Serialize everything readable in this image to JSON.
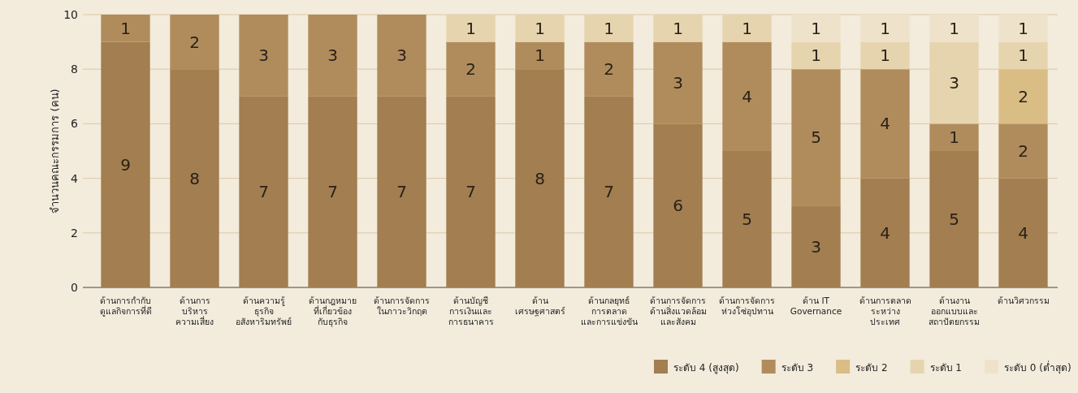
{
  "chart_data": {
    "type": "bar",
    "stacked": true,
    "ylabel": "จำนวนคณะกรรมการ (คน)",
    "categories": [
      "ด้านการกำกับ\nดูแลกิจการที่ดี",
      "ด้านการ\nบริหาร\nความเสี่ยง",
      "ด้านความรู้\nธุรกิจ\nอสังหาริมทรัพย์",
      "ด้านกฎหมาย\nที่เกี่ยวข้อง\nกับธุรกิจ",
      "ด้านการจัดการ\nในภาวะวิกฤต",
      "ด้านบัญชี\nการเงินและ\nการธนาคาร",
      "ด้าน\nเศรษฐศาสตร์",
      "ด้านกลยุทธ์\nการตลาด\nและการแข่งขัน",
      "ด้านการจัดการ\nด้านสิ่งแวดล้อม\nและสังคม",
      "ด้านการจัดการ\nห่วงโซ่อุปทาน",
      "ด้าน IT\nGovernance",
      "ด้านการตลาด\nระหว่าง\nประเทศ",
      "ด้านงาน\nออกแบบและ\nสถาปัตยกรรม",
      "ด้านวิศวกรรม"
    ],
    "series": [
      {
        "name": "ระดับ 4 (สูงสุด)",
        "color": "#a27e50",
        "values": [
          9,
          8,
          7,
          7,
          7,
          7,
          8,
          7,
          6,
          5,
          3,
          4,
          5,
          4
        ]
      },
      {
        "name": "ระดับ 3",
        "color": "#b08c5c",
        "values": [
          1,
          2,
          3,
          3,
          3,
          2,
          1,
          2,
          3,
          4,
          5,
          4,
          1,
          2
        ]
      },
      {
        "name": "ระดับ 2",
        "color": "#d9bd84",
        "values": [
          null,
          null,
          null,
          null,
          null,
          null,
          null,
          null,
          null,
          null,
          null,
          null,
          null,
          2
        ]
      },
      {
        "name": "ระดับ 1",
        "color": "#e6d4ae",
        "values": [
          null,
          null,
          null,
          null,
          null,
          1,
          1,
          1,
          1,
          1,
          1,
          1,
          3,
          1
        ]
      },
      {
        "name": "ระดับ 0 (ต่ำสุด)",
        "color": "#eee3ca",
        "values": [
          null,
          null,
          null,
          null,
          null,
          null,
          null,
          null,
          null,
          null,
          1,
          1,
          1,
          1
        ]
      }
    ],
    "ylim": [
      0,
      10
    ],
    "yticks": [
      0,
      2,
      4,
      6,
      8,
      10
    ],
    "grid": "y",
    "legend": "bottom right",
    "data_labels": true
  }
}
